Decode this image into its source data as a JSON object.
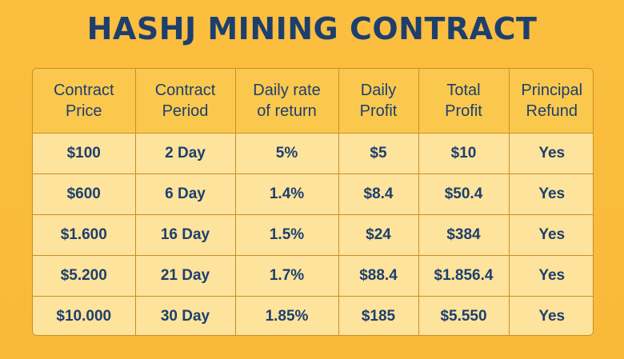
{
  "title": "HASHJ MINING CONTRACT",
  "headers": [
    [
      "Contract",
      "Price"
    ],
    [
      "Contract",
      "Period"
    ],
    [
      "Daily rate",
      "of return"
    ],
    [
      "Daily",
      "Profit"
    ],
    [
      "Total",
      "Profit"
    ],
    [
      "Principal",
      "Refund"
    ]
  ],
  "rows": [
    [
      "$100",
      "2 Day",
      "5%",
      "$5",
      "$10",
      "Yes"
    ],
    [
      "$600",
      "6 Day",
      "1.4%",
      "$8.4",
      "$50.4",
      "Yes"
    ],
    [
      "$1.600",
      "16 Day",
      "1.5%",
      "$24",
      "$384",
      "Yes"
    ],
    [
      "$5.200",
      "21 Day",
      "1.7%",
      "$88.4",
      "$1.856.4",
      "Yes"
    ],
    [
      "$10.000",
      "30 Day",
      "1.85%",
      "$185",
      "$5.550",
      "Yes"
    ]
  ],
  "colors": {
    "background": "#fbbf3f",
    "header_fill": "#fbc84e",
    "cell_fill": "#fde39c",
    "text": "#1d3f6e",
    "border": "#c88f22"
  }
}
